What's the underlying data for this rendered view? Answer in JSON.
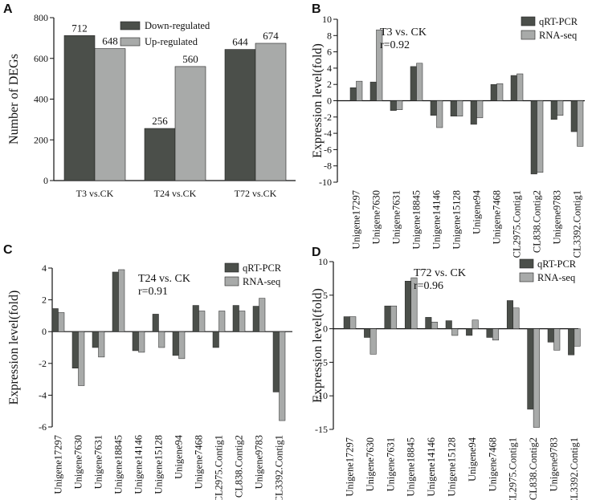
{
  "colors": {
    "dark": "#4b4f4a",
    "light": "#a8aaa9",
    "axis": "#111111"
  },
  "panels": [
    "A",
    "B",
    "C",
    "D"
  ],
  "chart_data": [
    {
      "type": "bar",
      "panel": "A",
      "ylabel": "Number of DEGs",
      "ylim": [
        0,
        800
      ],
      "yticks": [
        "0",
        "200",
        "400",
        "600",
        "800"
      ],
      "categories": [
        "T3 vs.CK",
        "T24 vs.CK",
        "T72 vs.CK"
      ],
      "series": [
        {
          "name": "Down-regulated",
          "color": "#4b4f4a",
          "values": [
            712,
            256,
            644
          ]
        },
        {
          "name": "Up-regulated",
          "color": "#a8aaa9",
          "values": [
            648,
            560,
            674
          ]
        }
      ],
      "data_labels": [
        [
          "712",
          "256",
          "644"
        ],
        [
          "648",
          "560",
          "674"
        ]
      ],
      "legend": "top-right"
    },
    {
      "type": "bar",
      "panel": "B",
      "ylabel": "Expression level(fold)",
      "ylim": [
        -10,
        10
      ],
      "yticks": [
        "-10",
        "-8",
        "-6",
        "-4",
        "-2",
        "0",
        "2",
        "4",
        "6",
        "8",
        "10"
      ],
      "annotation": [
        "T3 vs. CK",
        "r=0.92"
      ],
      "categories": [
        "Unigene17297",
        "Unigene7630",
        "Unigene7631",
        "Unigene18845",
        "Unigene14146",
        "Unigene15128",
        "Unigene94",
        "Unigene7468",
        "CL2975.Contig1",
        "CL838.Contig2",
        "Unigene9783",
        "CL3392.Contig1"
      ],
      "series": [
        {
          "name": "qRT-PCR",
          "color": "#4b4f4a",
          "values": [
            1.6,
            2.3,
            -1.2,
            4.2,
            -1.8,
            -1.9,
            -2.9,
            2.0,
            3.1,
            -9.0,
            -2.3,
            -3.8
          ]
        },
        {
          "name": "RNA-seq",
          "color": "#a8aaa9",
          "values": [
            2.4,
            8.7,
            -1.1,
            4.6,
            -3.3,
            -1.9,
            -2.1,
            2.1,
            3.3,
            -8.8,
            -1.8,
            -5.6
          ]
        }
      ],
      "legend": "top-right"
    },
    {
      "type": "bar",
      "panel": "C",
      "ylabel": "Expression level(fold)",
      "ylim": [
        -6,
        4
      ],
      "yticks": [
        "-6",
        "-4",
        "-2",
        "0",
        "2",
        "4"
      ],
      "annotation": [
        "T24 vs. CK",
        "r=0.91"
      ],
      "categories": [
        "Unigene17297",
        "Unigene7630",
        "Unigene7631",
        "Unigene18845",
        "Unigene14146",
        "Unigene15128",
        "Unigene94",
        "Unigene7468",
        "CL2975.Contig1",
        "CL838.Contig2",
        "Unigene9783",
        "CL3392.Contig1"
      ],
      "series": [
        {
          "name": "qRT-PCR",
          "color": "#4b4f4a",
          "values": [
            1.45,
            -2.3,
            -1.0,
            3.75,
            -1.2,
            1.1,
            -1.5,
            1.65,
            -1.0,
            1.65,
            1.6,
            -3.8
          ]
        },
        {
          "name": "RNA-seq",
          "color": "#a8aaa9",
          "values": [
            1.2,
            -3.4,
            -1.6,
            3.9,
            -1.3,
            -1.0,
            -1.7,
            1.3,
            1.3,
            1.3,
            2.1,
            -5.6
          ]
        }
      ],
      "legend": "top-right"
    },
    {
      "type": "bar",
      "panel": "D",
      "ylabel": "Expression level(fold)",
      "ylim": [
        -15,
        10
      ],
      "yticks": [
        "-15",
        "-10",
        "-5",
        "0",
        "5",
        "10"
      ],
      "annotation": [
        "T72 vs. CK",
        "r=0.96"
      ],
      "categories": [
        "Unigene17297",
        "Unigene7630",
        "Unigene7631",
        "Unigene18845",
        "Unigene14146",
        "Unigene15128",
        "Unigene94",
        "Unigene7468",
        "CL2975.Contig1",
        "CL838.Contig2",
        "Unigene9783",
        "CL3392.Contig1"
      ],
      "series": [
        {
          "name": "qRT-PCR",
          "color": "#4b4f4a",
          "values": [
            1.8,
            -1.3,
            3.4,
            7.1,
            1.7,
            1.2,
            -1.0,
            -1.3,
            4.2,
            -12.0,
            -2.0,
            -3.9
          ]
        },
        {
          "name": "RNA-seq",
          "color": "#a8aaa9",
          "values": [
            1.8,
            -3.8,
            3.4,
            7.6,
            1.0,
            -1.0,
            1.3,
            -1.7,
            3.1,
            -14.7,
            -3.2,
            -2.6
          ]
        }
      ],
      "legend": "top-right"
    }
  ]
}
